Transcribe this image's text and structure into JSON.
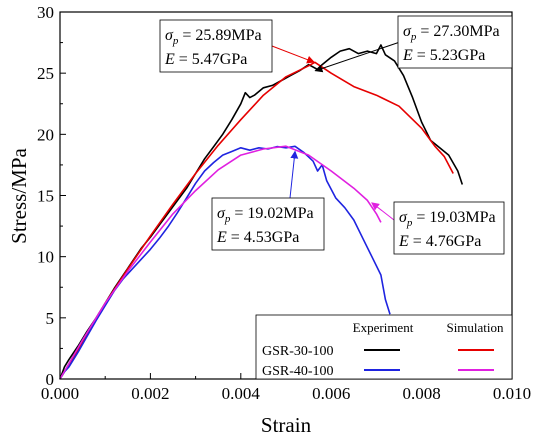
{
  "chart_data": {
    "type": "line",
    "xlabel": "Strain",
    "ylabel": "Stress/MPa",
    "xlim": [
      0.0,
      0.01
    ],
    "ylim": [
      0,
      30
    ],
    "xticks": [
      "0.000",
      "0.002",
      "0.004",
      "0.006",
      "0.008",
      "0.010"
    ],
    "yticks": [
      "0",
      "5",
      "10",
      "15",
      "20",
      "25",
      "30"
    ],
    "legend": {
      "placement": "bottom-right",
      "col_headers": [
        "Experiment",
        "Simulation"
      ],
      "rows": [
        {
          "label": "GSR-30-100",
          "experiment_color": "#000000",
          "simulation_color": "#e60000"
        },
        {
          "label": "GSR-40-100",
          "experiment_color": "#1f24e0",
          "simulation_color": "#e020e0"
        }
      ]
    },
    "series": [
      {
        "color": "#000000",
        "points": [
          [
            0.0,
            0.0
          ],
          [
            0.0001,
            1.0
          ],
          [
            0.0002,
            1.6
          ],
          [
            0.0004,
            2.7
          ],
          [
            0.0006,
            3.9
          ],
          [
            0.0008,
            5.0
          ],
          [
            0.001,
            6.2
          ],
          [
            0.0012,
            7.4
          ],
          [
            0.0014,
            8.5
          ],
          [
            0.0016,
            9.6
          ],
          [
            0.0018,
            10.7
          ],
          [
            0.002,
            11.6
          ],
          [
            0.0022,
            12.6
          ],
          [
            0.0024,
            13.6
          ],
          [
            0.0026,
            14.6
          ],
          [
            0.0028,
            15.6
          ],
          [
            0.003,
            16.8
          ],
          [
            0.0032,
            18.0
          ],
          [
            0.0034,
            19.0
          ],
          [
            0.0036,
            20.0
          ],
          [
            0.0038,
            21.2
          ],
          [
            0.004,
            22.5
          ],
          [
            0.0041,
            23.4
          ],
          [
            0.0042,
            23.0
          ],
          [
            0.0043,
            23.2
          ],
          [
            0.0045,
            23.8
          ],
          [
            0.0047,
            24.0
          ],
          [
            0.0049,
            24.4
          ],
          [
            0.0051,
            24.8
          ],
          [
            0.0053,
            25.2
          ],
          [
            0.0055,
            25.7
          ],
          [
            0.0057,
            25.3
          ],
          [
            0.0058,
            25.7
          ],
          [
            0.006,
            26.3
          ],
          [
            0.0062,
            26.8
          ],
          [
            0.0064,
            27.0
          ],
          [
            0.0066,
            26.6
          ],
          [
            0.0068,
            26.8
          ],
          [
            0.007,
            26.6
          ],
          [
            0.0071,
            27.3
          ],
          [
            0.0072,
            26.5
          ],
          [
            0.0074,
            26.0
          ],
          [
            0.0076,
            24.8
          ],
          [
            0.0078,
            23.0
          ],
          [
            0.008,
            21.0
          ],
          [
            0.0082,
            19.5
          ],
          [
            0.0084,
            18.9
          ],
          [
            0.0086,
            18.3
          ],
          [
            0.0088,
            17.0
          ],
          [
            0.0089,
            15.9
          ]
        ]
      },
      {
        "color": "#e60000",
        "points": [
          [
            0.0,
            0.0
          ],
          [
            0.0005,
            3.0
          ],
          [
            0.001,
            6.2
          ],
          [
            0.0015,
            9.0
          ],
          [
            0.002,
            11.7
          ],
          [
            0.0025,
            14.3
          ],
          [
            0.003,
            16.8
          ],
          [
            0.0035,
            19.1
          ],
          [
            0.004,
            21.2
          ],
          [
            0.0045,
            23.2
          ],
          [
            0.005,
            24.7
          ],
          [
            0.0055,
            25.6
          ],
          [
            0.00564,
            25.89
          ],
          [
            0.006,
            25.0
          ],
          [
            0.0065,
            23.9
          ],
          [
            0.007,
            23.2
          ],
          [
            0.0075,
            22.3
          ],
          [
            0.008,
            20.5
          ],
          [
            0.0083,
            19.0
          ],
          [
            0.0085,
            18.2
          ],
          [
            0.0087,
            16.8
          ]
        ]
      },
      {
        "color": "#1f24e0",
        "points": [
          [
            0.0,
            0.0
          ],
          [
            0.0001,
            0.6
          ],
          [
            0.0002,
            1.0
          ],
          [
            0.0004,
            2.2
          ],
          [
            0.0006,
            3.5
          ],
          [
            0.0008,
            4.8
          ],
          [
            0.001,
            6.0
          ],
          [
            0.0012,
            7.2
          ],
          [
            0.0014,
            8.2
          ],
          [
            0.0016,
            9.0
          ],
          [
            0.0018,
            9.8
          ],
          [
            0.002,
            10.6
          ],
          [
            0.0022,
            11.5
          ],
          [
            0.0024,
            12.5
          ],
          [
            0.0026,
            13.6
          ],
          [
            0.0028,
            14.8
          ],
          [
            0.003,
            16.0
          ],
          [
            0.0032,
            17.0
          ],
          [
            0.0034,
            17.7
          ],
          [
            0.0036,
            18.3
          ],
          [
            0.0038,
            18.6
          ],
          [
            0.004,
            18.9
          ],
          [
            0.0042,
            18.7
          ],
          [
            0.0044,
            18.9
          ],
          [
            0.0046,
            18.8
          ],
          [
            0.0048,
            19.0
          ],
          [
            0.005,
            18.9
          ],
          [
            0.0052,
            19.02
          ],
          [
            0.0054,
            18.5
          ],
          [
            0.0056,
            17.8
          ],
          [
            0.0057,
            17.0
          ],
          [
            0.0058,
            17.5
          ],
          [
            0.0059,
            16.2
          ],
          [
            0.0061,
            14.8
          ],
          [
            0.0063,
            14.0
          ],
          [
            0.0065,
            13.0
          ],
          [
            0.0067,
            11.5
          ],
          [
            0.0069,
            10.0
          ],
          [
            0.0071,
            8.5
          ],
          [
            0.0072,
            6.5
          ],
          [
            0.0073,
            5.3
          ]
        ]
      },
      {
        "color": "#e020e0",
        "points": [
          [
            0.0,
            0.0
          ],
          [
            0.0005,
            3.2
          ],
          [
            0.001,
            6.2
          ],
          [
            0.0015,
            8.8
          ],
          [
            0.002,
            11.2
          ],
          [
            0.0025,
            13.5
          ],
          [
            0.003,
            15.4
          ],
          [
            0.0035,
            17.1
          ],
          [
            0.004,
            18.3
          ],
          [
            0.0045,
            18.8
          ],
          [
            0.005,
            19.03
          ],
          [
            0.0055,
            18.3
          ],
          [
            0.006,
            17.0
          ],
          [
            0.0065,
            15.6
          ],
          [
            0.0068,
            14.6
          ],
          [
            0.007,
            13.5
          ],
          [
            0.0071,
            12.8
          ]
        ]
      }
    ],
    "annotations": [
      {
        "sigma_label": "σ",
        "sigma_sub": "p",
        "sigma_text": " = 25.89MPa",
        "e_label": "E",
        "e_text": " = 5.47GPa",
        "arrow_color": "#e60000"
      },
      {
        "sigma_label": "σ",
        "sigma_sub": "p",
        "sigma_text": " = 27.30MPa",
        "e_label": "E",
        "e_text": " = 5.23GPa",
        "arrow_color": "#000000"
      },
      {
        "sigma_label": "σ",
        "sigma_sub": "p",
        "sigma_text": " = 19.02MPa",
        "e_label": "E",
        "e_text": " = 4.53GPa",
        "arrow_color": "#1f24e0"
      },
      {
        "sigma_label": "σ",
        "sigma_sub": "p",
        "sigma_text": " = 19.03MPa",
        "e_label": "E",
        "e_text": " = 4.76GPa",
        "arrow_color": "#e020e0"
      }
    ]
  }
}
